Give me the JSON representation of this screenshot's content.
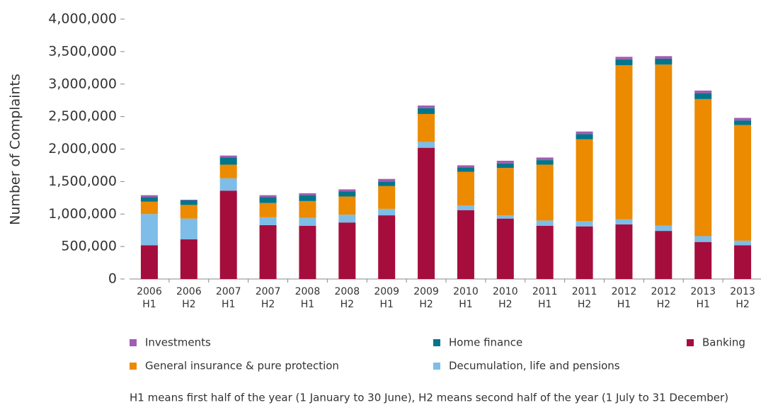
{
  "chart_data": {
    "type": "stacked_bar",
    "y_label": "Number of Complaints",
    "categories": [
      "2006 H1",
      "2006 H2",
      "2007 H1",
      "2007 H2",
      "2008 H1",
      "2008 H2",
      "2009 H1",
      "2009 H2",
      "2010 H1",
      "2010 H2",
      "2011 H1",
      "2011 H2",
      "2012 H1",
      "2012 H2",
      "2013 H1",
      "2013 H2"
    ],
    "series": [
      {
        "name": "Banking",
        "color": "#a50d3d",
        "values": [
          520000,
          610000,
          1360000,
          830000,
          820000,
          870000,
          980000,
          2020000,
          1060000,
          930000,
          820000,
          810000,
          840000,
          740000,
          570000,
          520000
        ]
      },
      {
        "name": "Decumulation, life and pensions",
        "color": "#7dbde8",
        "values": [
          480000,
          320000,
          190000,
          120000,
          120000,
          120000,
          100000,
          90000,
          70000,
          50000,
          80000,
          80000,
          80000,
          80000,
          90000,
          70000
        ]
      },
      {
        "name": "General insurance & pure protection",
        "color": "#ec8a00",
        "values": [
          190000,
          210000,
          210000,
          220000,
          260000,
          280000,
          350000,
          430000,
          520000,
          730000,
          860000,
          1260000,
          2370000,
          2480000,
          2110000,
          1780000
        ]
      },
      {
        "name": "Home finance",
        "color": "#00768a",
        "values": [
          70000,
          70000,
          110000,
          90000,
          90000,
          80000,
          70000,
          90000,
          70000,
          70000,
          70000,
          80000,
          90000,
          90000,
          90000,
          70000
        ]
      },
      {
        "name": "Investments",
        "color": "#a15db3",
        "values": [
          30000,
          10000,
          30000,
          30000,
          30000,
          30000,
          40000,
          40000,
          30000,
          40000,
          40000,
          40000,
          40000,
          40000,
          40000,
          40000
        ]
      }
    ],
    "ylim": [
      0,
      4000000
    ],
    "yticks": [
      0,
      {
        "value": 500000,
        "label": "500,000"
      },
      {
        "value": 1000000,
        "label": "1,000,000"
      },
      {
        "value": 1500000,
        "label": "1,500,000"
      },
      {
        "value": 2000000,
        "label": "2,000,000"
      },
      {
        "value": 2500000,
        "label": "2,500,000"
      },
      {
        "value": 3000000,
        "label": "3,000,000"
      },
      {
        "value": 3500000,
        "label": "3,500,000"
      },
      {
        "value": 4000000,
        "label": "4,000,000"
      }
    ],
    "footnote": "H1 means first half of the year (1 January to 30 June), H2 means second half of the year (1 July to 31 December)"
  }
}
